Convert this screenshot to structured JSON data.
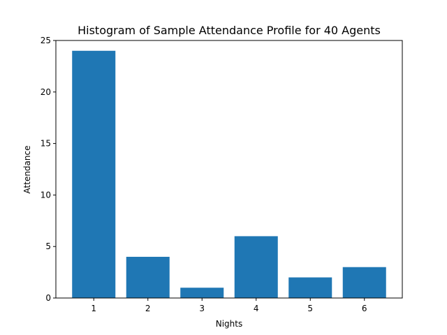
{
  "chart_data": {
    "type": "bar",
    "title": "Histogram of Sample Attendance Profile for 40 Agents",
    "xlabel": "Nights",
    "ylabel": "Attendance",
    "categories": [
      "1",
      "2",
      "3",
      "4",
      "5",
      "6"
    ],
    "values": [
      24,
      4,
      1,
      6,
      2,
      3
    ],
    "xlim": [
      0.3,
      6.7
    ],
    "ylim": [
      0,
      25
    ],
    "yticks": [
      0,
      5,
      10,
      15,
      20,
      25
    ],
    "bar_color": "#1f77b4",
    "grid": false,
    "legend": "none"
  }
}
